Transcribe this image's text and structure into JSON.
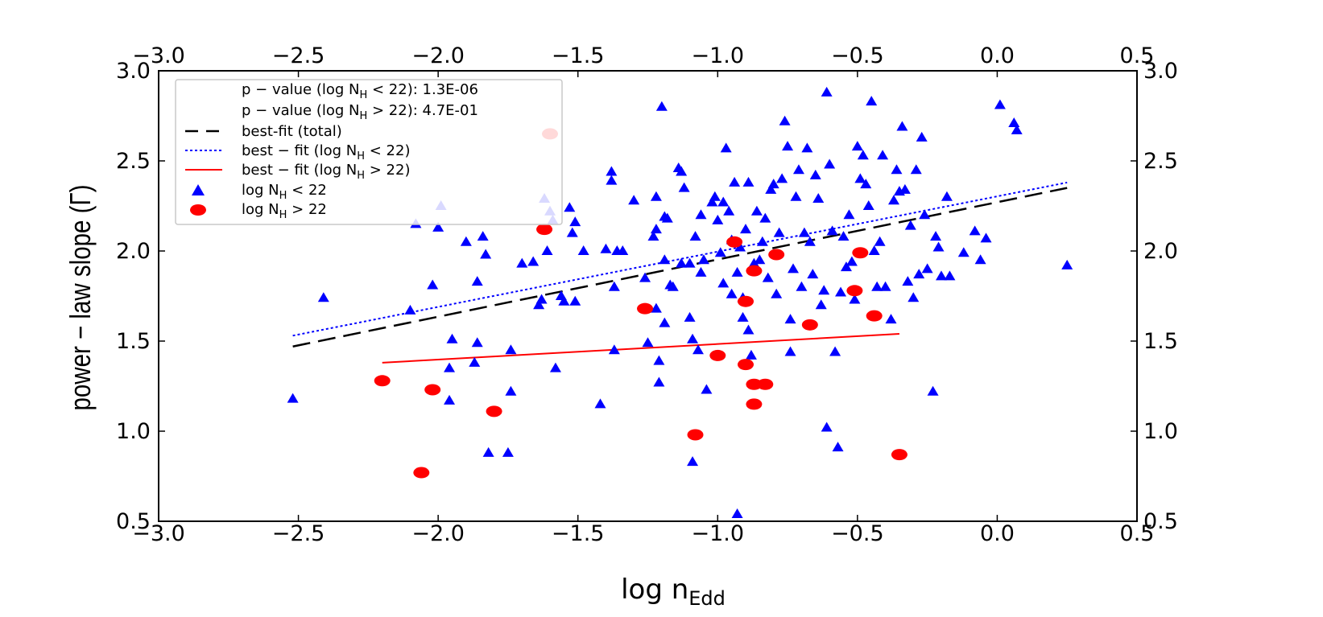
{
  "chart_data": {
    "type": "scatter",
    "xlabel": "log n",
    "xlabel_sub": "Edd",
    "ylabel": "power − law slope (Γ)",
    "xlim": [
      -3.0,
      0.5
    ],
    "ylim": [
      0.5,
      3.0
    ],
    "xticks": [
      -3.0,
      -2.5,
      -2.0,
      -1.5,
      -1.0,
      -0.5,
      0.0,
      0.5
    ],
    "yticks": [
      0.5,
      1.0,
      1.5,
      2.0,
      2.5,
      3.0
    ],
    "xtick_labels": [
      "−3.0",
      "−2.5",
      "−2.0",
      "−1.5",
      "−1.0",
      "−0.5",
      "0.0",
      "0.5"
    ],
    "ytick_labels": [
      "0.5",
      "1.0",
      "1.5",
      "2.0",
      "2.5",
      "3.0"
    ],
    "legend_position": "upper-left",
    "legend": {
      "pvalue_low_prefix": "p − value (log N",
      "pvalue_low_suffix": " < 22): 1.3E-06",
      "pvalue_high_prefix": "p − value (log N",
      "pvalue_high_suffix": " > 22): 4.7E-01",
      "fit_total": "best-fit (total)",
      "fit_low_prefix": "best − fit (log N",
      "fit_low_suffix": " < 22)",
      "fit_high_prefix": "best − fit (log N",
      "fit_high_suffix": " > 22)",
      "scatter_low_prefix": "log N",
      "scatter_low_suffix": " < 22",
      "scatter_high_prefix": "log N",
      "scatter_high_suffix": " > 22",
      "sub_h": "H"
    },
    "fit_lines": [
      {
        "name": "best-fit (total)",
        "color": "#000000",
        "style": "dashed",
        "x": [
          -2.52,
          0.25
        ],
        "y": [
          1.47,
          2.35
        ]
      },
      {
        "name": "best-fit (log NH < 22)",
        "color": "#0000ff",
        "style": "dotted",
        "x": [
          -2.52,
          0.25
        ],
        "y": [
          1.53,
          2.38
        ]
      },
      {
        "name": "best-fit (log NH > 22)",
        "color": "#ff0000",
        "style": "solid",
        "x": [
          -2.2,
          -0.35
        ],
        "y": [
          1.38,
          1.54
        ]
      }
    ],
    "series": [
      {
        "name": "log NH < 22",
        "color": "#0000ff",
        "marker": "triangle",
        "points": [
          [
            -2.52,
            1.18
          ],
          [
            -2.41,
            1.74
          ],
          [
            -2.1,
            1.67
          ],
          [
            -2.08,
            2.15
          ],
          [
            -2.02,
            1.81
          ],
          [
            -2.0,
            2.13
          ],
          [
            -1.99,
            2.25
          ],
          [
            -1.96,
            1.35
          ],
          [
            -1.96,
            1.17
          ],
          [
            -1.95,
            1.51
          ],
          [
            -1.9,
            2.05
          ],
          [
            -1.87,
            1.38
          ],
          [
            -1.86,
            1.49
          ],
          [
            -1.86,
            1.83
          ],
          [
            -1.84,
            2.08
          ],
          [
            -1.83,
            1.98
          ],
          [
            -1.82,
            0.88
          ],
          [
            -1.75,
            0.88
          ],
          [
            -1.74,
            1.45
          ],
          [
            -1.74,
            1.22
          ],
          [
            -1.7,
            1.93
          ],
          [
            -1.66,
            1.94
          ],
          [
            -1.64,
            1.7
          ],
          [
            -1.63,
            1.73
          ],
          [
            -1.62,
            2.29
          ],
          [
            -1.61,
            2.0
          ],
          [
            -1.6,
            2.22
          ],
          [
            -1.59,
            2.17
          ],
          [
            -1.58,
            1.35
          ],
          [
            -1.56,
            1.75
          ],
          [
            -1.55,
            1.72
          ],
          [
            -1.53,
            2.24
          ],
          [
            -1.52,
            2.1
          ],
          [
            -1.51,
            2.16
          ],
          [
            -1.51,
            1.72
          ],
          [
            -1.48,
            2.0
          ],
          [
            -1.42,
            1.15
          ],
          [
            -1.4,
            2.01
          ],
          [
            -1.38,
            2.44
          ],
          [
            -1.38,
            2.39
          ],
          [
            -1.37,
            1.8
          ],
          [
            -1.37,
            1.45
          ],
          [
            -1.36,
            2.0
          ],
          [
            -1.34,
            2.0
          ],
          [
            -1.3,
            2.28
          ],
          [
            -1.26,
            1.85
          ],
          [
            -1.25,
            1.49
          ],
          [
            -1.23,
            2.08
          ],
          [
            -1.22,
            2.12
          ],
          [
            -1.22,
            1.68
          ],
          [
            -1.22,
            2.3
          ],
          [
            -1.21,
            1.39
          ],
          [
            -1.21,
            1.27
          ],
          [
            -1.2,
            2.8
          ],
          [
            -1.19,
            1.95
          ],
          [
            -1.19,
            2.19
          ],
          [
            -1.19,
            1.6
          ],
          [
            -1.18,
            2.18
          ],
          [
            -1.17,
            1.81
          ],
          [
            -1.16,
            1.8
          ],
          [
            -1.14,
            2.46
          ],
          [
            -1.13,
            2.44
          ],
          [
            -1.13,
            1.93
          ],
          [
            -1.12,
            2.35
          ],
          [
            -1.1,
            1.93
          ],
          [
            -1.1,
            1.63
          ],
          [
            -1.09,
            0.83
          ],
          [
            -1.09,
            1.51
          ],
          [
            -1.08,
            2.08
          ],
          [
            -1.07,
            1.45
          ],
          [
            -1.06,
            1.88
          ],
          [
            -1.06,
            2.2
          ],
          [
            -1.05,
            1.95
          ],
          [
            -1.04,
            1.23
          ],
          [
            -1.02,
            2.27
          ],
          [
            -1.01,
            2.3
          ],
          [
            -1.0,
            2.17
          ],
          [
            -0.99,
            1.99
          ],
          [
            -0.98,
            1.82
          ],
          [
            -0.98,
            2.27
          ],
          [
            -0.97,
            2.57
          ],
          [
            -0.96,
            2.22
          ],
          [
            -0.95,
            1.76
          ],
          [
            -0.95,
            2.06
          ],
          [
            -0.94,
            2.38
          ],
          [
            -0.93,
            1.88
          ],
          [
            -0.93,
            0.54
          ],
          [
            -0.92,
            2.02
          ],
          [
            -0.91,
            1.74
          ],
          [
            -0.91,
            1.63
          ],
          [
            -0.9,
            2.12
          ],
          [
            -0.89,
            1.56
          ],
          [
            -0.89,
            2.38
          ],
          [
            -0.88,
            1.42
          ],
          [
            -0.87,
            1.93
          ],
          [
            -0.86,
            2.22
          ],
          [
            -0.85,
            1.95
          ],
          [
            -0.84,
            2.05
          ],
          [
            -0.83,
            2.18
          ],
          [
            -0.82,
            1.85
          ],
          [
            -0.81,
            2.34
          ],
          [
            -0.8,
            2.37
          ],
          [
            -0.79,
            1.76
          ],
          [
            -0.78,
            2.1
          ],
          [
            -0.77,
            2.4
          ],
          [
            -0.76,
            2.72
          ],
          [
            -0.75,
            2.58
          ],
          [
            -0.74,
            1.62
          ],
          [
            -0.74,
            1.44
          ],
          [
            -0.73,
            1.9
          ],
          [
            -0.72,
            2.3
          ],
          [
            -0.71,
            2.45
          ],
          [
            -0.7,
            1.8
          ],
          [
            -0.69,
            2.1
          ],
          [
            -0.68,
            2.57
          ],
          [
            -0.67,
            2.05
          ],
          [
            -0.66,
            1.87
          ],
          [
            -0.65,
            2.42
          ],
          [
            -0.64,
            2.29
          ],
          [
            -0.63,
            1.7
          ],
          [
            -0.62,
            1.78
          ],
          [
            -0.61,
            1.02
          ],
          [
            -0.61,
            2.88
          ],
          [
            -0.6,
            2.48
          ],
          [
            -0.59,
            2.11
          ],
          [
            -0.58,
            1.44
          ],
          [
            -0.57,
            0.91
          ],
          [
            -0.56,
            1.77
          ],
          [
            -0.55,
            2.08
          ],
          [
            -0.54,
            1.91
          ],
          [
            -0.53,
            2.2
          ],
          [
            -0.52,
            1.94
          ],
          [
            -0.51,
            1.73
          ],
          [
            -0.5,
            2.58
          ],
          [
            -0.49,
            2.4
          ],
          [
            -0.48,
            2.53
          ],
          [
            -0.47,
            2.37
          ],
          [
            -0.46,
            2.25
          ],
          [
            -0.45,
            2.83
          ],
          [
            -0.44,
            2.0
          ],
          [
            -0.43,
            1.8
          ],
          [
            -0.42,
            2.05
          ],
          [
            -0.41,
            2.53
          ],
          [
            -0.4,
            1.8
          ],
          [
            -0.38,
            1.62
          ],
          [
            -0.37,
            2.28
          ],
          [
            -0.36,
            2.45
          ],
          [
            -0.35,
            2.33
          ],
          [
            -0.34,
            2.69
          ],
          [
            -0.33,
            2.34
          ],
          [
            -0.32,
            1.83
          ],
          [
            -0.31,
            2.14
          ],
          [
            -0.3,
            1.74
          ],
          [
            -0.29,
            2.45
          ],
          [
            -0.28,
            1.87
          ],
          [
            -0.27,
            2.63
          ],
          [
            -0.26,
            2.2
          ],
          [
            -0.25,
            1.9
          ],
          [
            -0.23,
            1.22
          ],
          [
            -0.22,
            2.08
          ],
          [
            -0.21,
            2.02
          ],
          [
            -0.2,
            1.86
          ],
          [
            -0.18,
            2.3
          ],
          [
            -0.17,
            1.86
          ],
          [
            -0.12,
            1.99
          ],
          [
            -0.08,
            2.11
          ],
          [
            -0.06,
            1.95
          ],
          [
            -0.04,
            2.07
          ],
          [
            0.01,
            2.81
          ],
          [
            0.06,
            2.71
          ],
          [
            0.07,
            2.67
          ],
          [
            0.25,
            1.92
          ]
        ]
      },
      {
        "name": "log NH > 22",
        "color": "#ff0000",
        "marker": "ellipse",
        "points": [
          [
            -2.2,
            1.28
          ],
          [
            -2.06,
            0.77
          ],
          [
            -2.02,
            1.23
          ],
          [
            -1.8,
            1.11
          ],
          [
            -1.62,
            2.12
          ],
          [
            -1.6,
            2.65
          ],
          [
            -1.26,
            1.68
          ],
          [
            -1.08,
            0.98
          ],
          [
            -1.0,
            1.42
          ],
          [
            -0.94,
            2.05
          ],
          [
            -0.9,
            1.72
          ],
          [
            -0.9,
            1.37
          ],
          [
            -0.87,
            1.89
          ],
          [
            -0.87,
            1.26
          ],
          [
            -0.87,
            1.15
          ],
          [
            -0.83,
            1.26
          ],
          [
            -0.79,
            1.98
          ],
          [
            -0.67,
            1.59
          ],
          [
            -0.51,
            1.78
          ],
          [
            -0.49,
            1.99
          ],
          [
            -0.44,
            1.64
          ],
          [
            -0.35,
            0.87
          ]
        ]
      }
    ]
  }
}
